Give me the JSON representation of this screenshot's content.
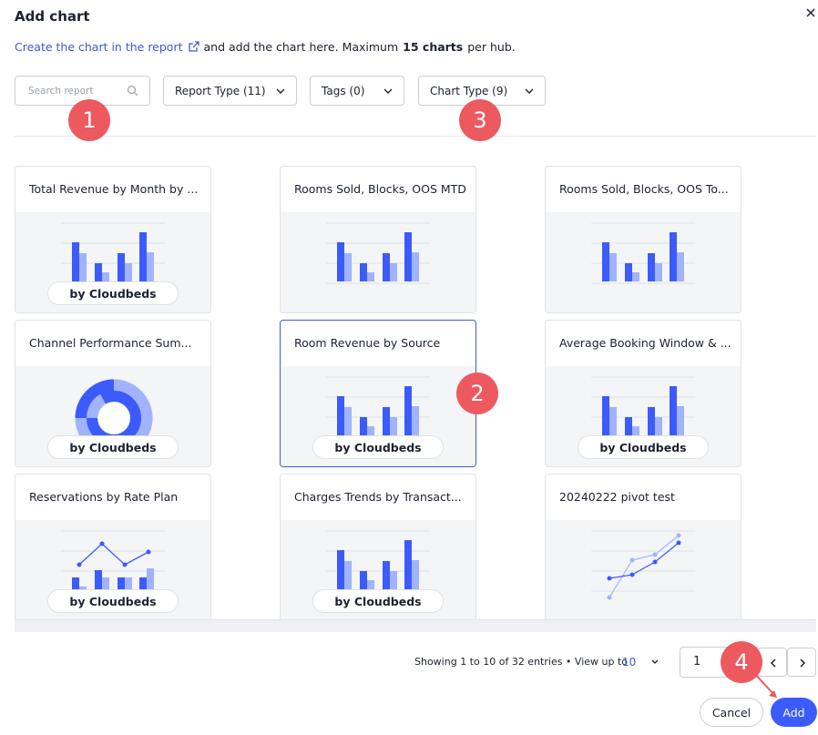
{
  "dialog": {
    "title": "Add chart"
  },
  "intro": {
    "link": "Create the chart in the report",
    "text": "and add the chart here. Maximum",
    "bold": "15 charts",
    "tail": "per hub."
  },
  "filters": {
    "search_placeholder": "Search report",
    "report_type": "Report Type (11)",
    "tags": "Tags (0)",
    "chart_type": "Chart Type (9)"
  },
  "cards": [
    {
      "title": "Total Revenue by Month by ...",
      "chart": "bar",
      "badge": "by Cloudbeds"
    },
    {
      "title": "Rooms Sold, Blocks, OOS MTD",
      "chart": "bar"
    },
    {
      "title": "Rooms Sold, Blocks, OOS To...",
      "chart": "bar"
    },
    {
      "title": "Channel Performance Sum...",
      "chart": "donut",
      "badge": "by Cloudbeds"
    },
    {
      "title": "Room Revenue by Source",
      "chart": "bar",
      "badge": "by Cloudbeds",
      "selected": true
    },
    {
      "title": "Average Booking Window & ...",
      "chart": "bar",
      "badge": "by Cloudbeds"
    },
    {
      "title": "Reservations by Rate Plan",
      "chart": "line-bar",
      "badge": "by Cloudbeds"
    },
    {
      "title": "Charges Trends by Transact...",
      "chart": "bar",
      "badge": "by Cloudbeds"
    },
    {
      "title": "20240222 pivot test",
      "chart": "line"
    }
  ],
  "callouts": [
    "1",
    "2",
    "3",
    "4"
  ],
  "pagination": {
    "summary": "Showing 1 to 10 of 32 entries • View up to",
    "page_size": "10",
    "page": "1"
  },
  "buttons": {
    "cancel": "Cancel",
    "add": "Add"
  }
}
